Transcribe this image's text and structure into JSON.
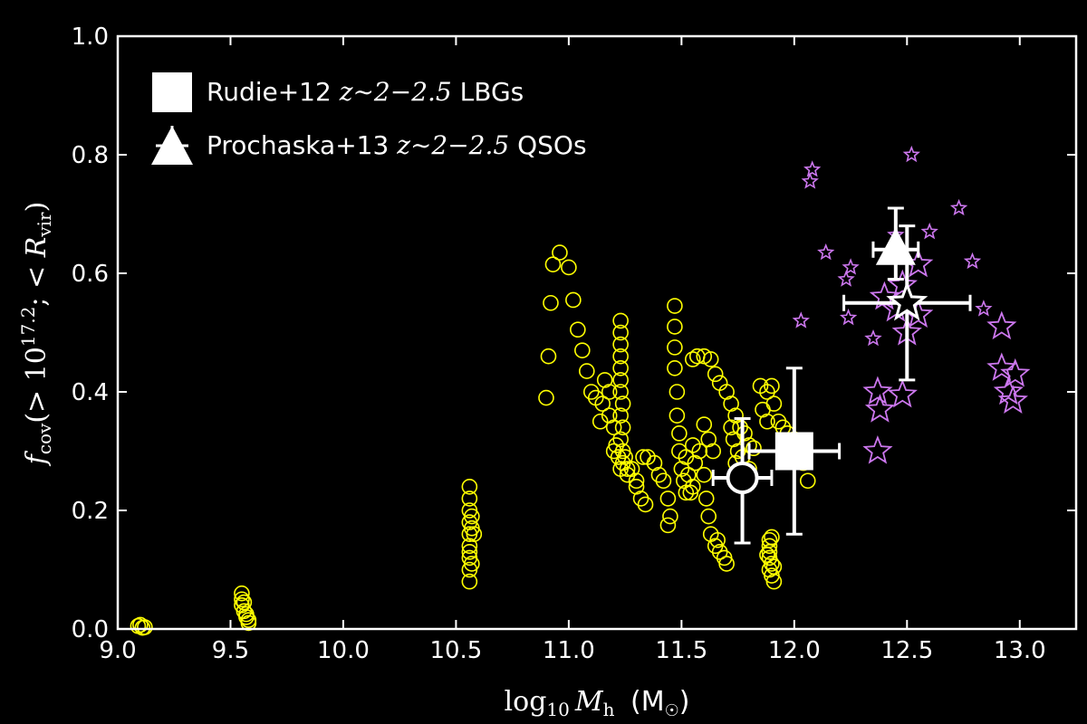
{
  "chart_data": {
    "type": "scatter",
    "xlabel": "log10 Mh (M☉)",
    "ylabel": "fcov(>10^17.2; <Rvir)",
    "xlim": [
      9.0,
      13.25
    ],
    "ylim": [
      0.0,
      1.0
    ],
    "xticks": [
      "9.0",
      "9.5",
      "10.0",
      "10.5",
      "11.0",
      "11.5",
      "12.0",
      "12.5",
      "13.0"
    ],
    "yticks": [
      "0.0",
      "0.2",
      "0.4",
      "0.6",
      "0.8",
      "1.0"
    ],
    "legend_position": "top-left",
    "legend": [
      {
        "marker": "square",
        "label_prefix": "Rudie+12 ",
        "label_math": "z∼2−2.5",
        "label_suffix": " LBGs"
      },
      {
        "marker": "triangle",
        "label_prefix": "Prochaska+13 ",
        "label_math": "z∼2−2.5",
        "label_suffix": " QSOs"
      }
    ],
    "colors": {
      "background": "#000000",
      "axes": "#ffffff",
      "yellow_circles": "#ffff00",
      "stars": "#cc77ee",
      "markers": "#ffffff"
    },
    "simulation_circles": [
      [
        9.09,
        0.005
      ],
      [
        9.1,
        0.007
      ],
      [
        9.12,
        0.003
      ],
      [
        9.11,
        0.002
      ],
      [
        9.55,
        0.06
      ],
      [
        9.55,
        0.05
      ],
      [
        9.55,
        0.04
      ],
      [
        9.56,
        0.03
      ],
      [
        9.57,
        0.025
      ],
      [
        9.58,
        0.015
      ],
      [
        9.57,
        0.02
      ],
      [
        9.56,
        0.045
      ],
      [
        9.58,
        0.01
      ],
      [
        10.56,
        0.24
      ],
      [
        10.56,
        0.22
      ],
      [
        10.56,
        0.2
      ],
      [
        10.56,
        0.18
      ],
      [
        10.57,
        0.17
      ],
      [
        10.56,
        0.16
      ],
      [
        10.58,
        0.16
      ],
      [
        10.56,
        0.14
      ],
      [
        10.56,
        0.13
      ],
      [
        10.56,
        0.12
      ],
      [
        10.57,
        0.11
      ],
      [
        10.56,
        0.1
      ],
      [
        10.56,
        0.08
      ],
      [
        10.57,
        0.19
      ],
      [
        10.9,
        0.39
      ],
      [
        10.91,
        0.46
      ],
      [
        10.92,
        0.55
      ],
      [
        10.93,
        0.615
      ],
      [
        10.96,
        0.635
      ],
      [
        11.0,
        0.61
      ],
      [
        11.02,
        0.555
      ],
      [
        11.04,
        0.505
      ],
      [
        11.06,
        0.47
      ],
      [
        11.08,
        0.435
      ],
      [
        11.1,
        0.4
      ],
      [
        11.12,
        0.39
      ],
      [
        11.15,
        0.38
      ],
      [
        11.18,
        0.36
      ],
      [
        11.2,
        0.34
      ],
      [
        11.21,
        0.31
      ],
      [
        11.22,
        0.29
      ],
      [
        11.23,
        0.27
      ],
      [
        11.26,
        0.26
      ],
      [
        11.3,
        0.25
      ],
      [
        11.32,
        0.22
      ],
      [
        11.34,
        0.21
      ],
      [
        11.16,
        0.42
      ],
      [
        11.18,
        0.4
      ],
      [
        11.14,
        0.35
      ],
      [
        11.2,
        0.3
      ],
      [
        11.24,
        0.28
      ],
      [
        11.23,
        0.52
      ],
      [
        11.23,
        0.5
      ],
      [
        11.23,
        0.48
      ],
      [
        11.23,
        0.46
      ],
      [
        11.23,
        0.44
      ],
      [
        11.23,
        0.42
      ],
      [
        11.23,
        0.4
      ],
      [
        11.24,
        0.38
      ],
      [
        11.23,
        0.36
      ],
      [
        11.24,
        0.34
      ],
      [
        11.23,
        0.32
      ],
      [
        11.24,
        0.3
      ],
      [
        11.25,
        0.29
      ],
      [
        11.26,
        0.27
      ],
      [
        11.28,
        0.27
      ],
      [
        11.3,
        0.24
      ],
      [
        11.33,
        0.29
      ],
      [
        11.35,
        0.29
      ],
      [
        11.38,
        0.28
      ],
      [
        11.4,
        0.26
      ],
      [
        11.42,
        0.25
      ],
      [
        11.44,
        0.22
      ],
      [
        11.45,
        0.19
      ],
      [
        11.44,
        0.175
      ],
      [
        11.47,
        0.545
      ],
      [
        11.47,
        0.51
      ],
      [
        11.47,
        0.475
      ],
      [
        11.47,
        0.44
      ],
      [
        11.48,
        0.4
      ],
      [
        11.48,
        0.36
      ],
      [
        11.49,
        0.33
      ],
      [
        11.49,
        0.3
      ],
      [
        11.5,
        0.27
      ],
      [
        11.51,
        0.25
      ],
      [
        11.52,
        0.23
      ],
      [
        11.54,
        0.23
      ],
      [
        11.55,
        0.24
      ],
      [
        11.53,
        0.26
      ],
      [
        11.52,
        0.29
      ],
      [
        11.55,
        0.31
      ],
      [
        11.58,
        0.3
      ],
      [
        11.56,
        0.28
      ],
      [
        11.55,
        0.455
      ],
      [
        11.57,
        0.46
      ],
      [
        11.6,
        0.46
      ],
      [
        11.63,
        0.455
      ],
      [
        11.65,
        0.43
      ],
      [
        11.67,
        0.415
      ],
      [
        11.7,
        0.4
      ],
      [
        11.72,
        0.38
      ],
      [
        11.74,
        0.36
      ],
      [
        11.76,
        0.34
      ],
      [
        11.78,
        0.33
      ],
      [
        11.8,
        0.31
      ],
      [
        11.82,
        0.305
      ],
      [
        11.6,
        0.345
      ],
      [
        11.62,
        0.32
      ],
      [
        11.64,
        0.3
      ],
      [
        11.6,
        0.26
      ],
      [
        11.61,
        0.22
      ],
      [
        11.62,
        0.19
      ],
      [
        11.63,
        0.16
      ],
      [
        11.65,
        0.14
      ],
      [
        11.67,
        0.13
      ],
      [
        11.69,
        0.12
      ],
      [
        11.7,
        0.11
      ],
      [
        11.66,
        0.15
      ],
      [
        11.85,
        0.41
      ],
      [
        11.88,
        0.4
      ],
      [
        11.9,
        0.41
      ],
      [
        11.91,
        0.38
      ],
      [
        11.93,
        0.35
      ],
      [
        11.95,
        0.34
      ],
      [
        11.97,
        0.33
      ],
      [
        12.0,
        0.32
      ],
      [
        12.02,
        0.3
      ],
      [
        12.04,
        0.28
      ],
      [
        12.06,
        0.25
      ],
      [
        11.86,
        0.37
      ],
      [
        11.88,
        0.35
      ],
      [
        11.89,
        0.15
      ],
      [
        11.89,
        0.14
      ],
      [
        11.89,
        0.13
      ],
      [
        11.89,
        0.12
      ],
      [
        11.9,
        0.11
      ],
      [
        11.89,
        0.1
      ],
      [
        11.9,
        0.09
      ],
      [
        11.91,
        0.08
      ],
      [
        11.9,
        0.155
      ],
      [
        11.88,
        0.125
      ],
      [
        11.91,
        0.105
      ],
      [
        11.72,
        0.34
      ],
      [
        11.73,
        0.32
      ],
      [
        11.75,
        0.3
      ],
      [
        11.77,
        0.29
      ],
      [
        11.8,
        0.27
      ],
      [
        11.74,
        0.28
      ],
      [
        11.76,
        0.26
      ]
    ],
    "small_stars": [
      [
        12.52,
        0.8
      ],
      [
        12.08,
        0.775
      ],
      [
        12.07,
        0.755
      ],
      [
        12.73,
        0.71
      ],
      [
        12.6,
        0.67
      ],
      [
        12.45,
        0.665
      ],
      [
        12.14,
        0.635
      ],
      [
        12.25,
        0.61
      ],
      [
        12.23,
        0.59
      ],
      [
        12.79,
        0.62
      ],
      [
        12.84,
        0.54
      ],
      [
        12.03,
        0.52
      ],
      [
        12.24,
        0.525
      ],
      [
        12.35,
        0.49
      ]
    ],
    "large_stars": [
      [
        12.4,
        0.56
      ],
      [
        12.48,
        0.58
      ],
      [
        12.55,
        0.615
      ],
      [
        12.45,
        0.54
      ],
      [
        12.5,
        0.5
      ],
      [
        12.55,
        0.53
      ],
      [
        12.92,
        0.51
      ],
      [
        12.37,
        0.4
      ],
      [
        12.38,
        0.37
      ],
      [
        12.48,
        0.395
      ],
      [
        12.92,
        0.44
      ],
      [
        12.98,
        0.43
      ],
      [
        12.95,
        0.4
      ],
      [
        12.97,
        0.385
      ],
      [
        12.37,
        0.3
      ]
    ],
    "points_with_errorbars": [
      {
        "marker": "square",
        "x": 12.0,
        "y": 0.3,
        "xerr": [
          0.2,
          0.2
        ],
        "yerr": [
          0.14,
          0.14
        ]
      },
      {
        "marker": "triangle",
        "x": 12.45,
        "y": 0.64,
        "xerr": [
          0.1,
          0.1
        ],
        "yerr": [
          0.05,
          0.07
        ]
      },
      {
        "marker": "open-circle",
        "x": 11.77,
        "y": 0.255,
        "xerr": [
          0.13,
          0.13
        ],
        "yerr": [
          0.11,
          0.1
        ]
      },
      {
        "marker": "open-star",
        "x": 12.5,
        "y": 0.55,
        "xerr": [
          0.28,
          0.28
        ],
        "yerr": [
          0.13,
          0.13
        ]
      }
    ]
  }
}
